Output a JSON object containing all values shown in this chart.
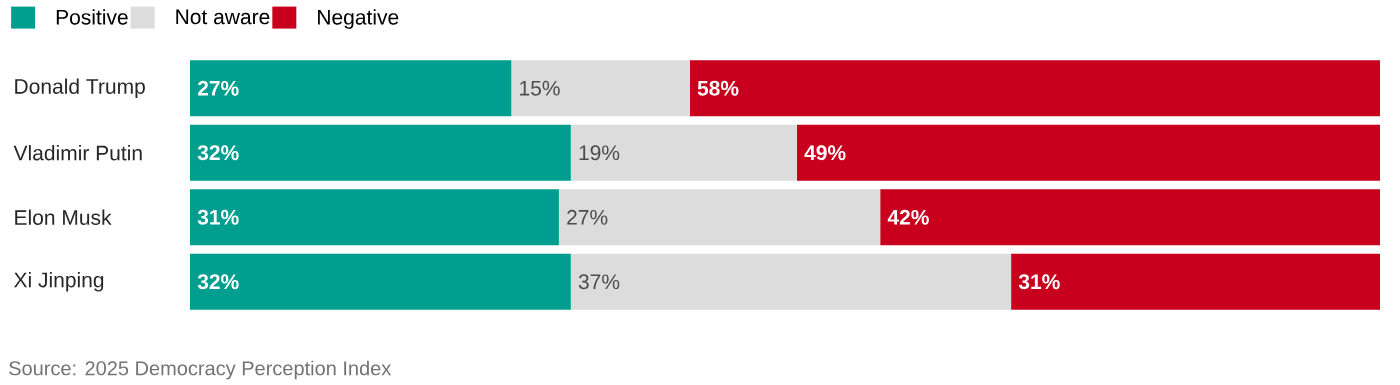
{
  "chart_data": {
    "type": "bar",
    "orientation": "horizontal",
    "stacked": true,
    "categories": [
      "Donald Trump",
      "Vladimir Putin",
      "Elon Musk",
      "Xi Jinping"
    ],
    "series": [
      {
        "name": "Positive",
        "color": "#009e8e",
        "values": [
          27,
          32,
          31,
          32
        ],
        "value_labels": [
          "27%",
          "32%",
          "31%",
          "32%"
        ]
      },
      {
        "name": "Not aware",
        "color": "#dcdcdc",
        "values": [
          15,
          19,
          27,
          37
        ],
        "value_labels": [
          "15%",
          "19%",
          "27%",
          "37%"
        ]
      },
      {
        "name": "Negative",
        "color": "#c8001e",
        "values": [
          58,
          49,
          42,
          31
        ],
        "value_labels": [
          "58%",
          "49%",
          "42%",
          "31%"
        ]
      }
    ],
    "legend": "top left",
    "annotations": [
      "Source: 2025 Democracy Perception Index"
    ]
  }
}
